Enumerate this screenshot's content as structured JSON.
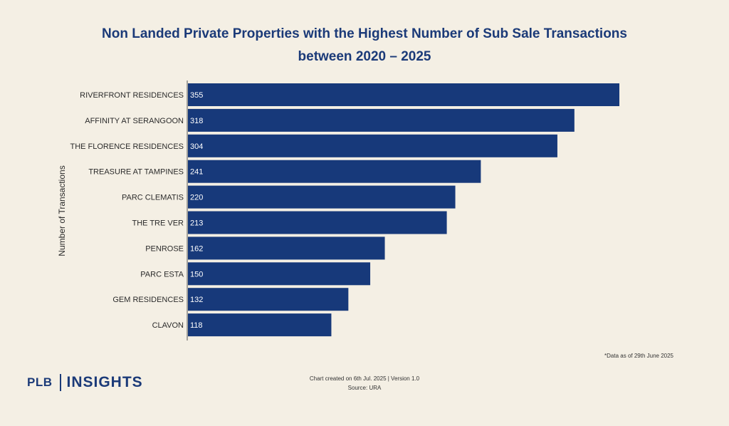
{
  "colors": {
    "background": "#f4efe4",
    "bar": "#17397a",
    "title": "#1b3a78",
    "bar_label": "#ffffff"
  },
  "chart_data": {
    "type": "bar",
    "orientation": "horizontal",
    "title": "Non Landed Private Properties with the Highest Number of Sub Sale Transactions between 2020 – 2025",
    "title_lines": [
      "Non Landed Private Properties with the Highest Number of Sub Sale Transactions",
      "between 2020 – 2025"
    ],
    "ylabel": "Number of Transactions",
    "xlabel": "",
    "categories": [
      "RIVERFRONT RESIDENCES",
      "AFFINITY AT SERANGOON",
      "THE FLORENCE RESIDENCES",
      "TREASURE AT TAMPINES",
      "PARC CLEMATIS",
      "THE TRE VER",
      "PENROSE",
      "PARC ESTA",
      "GEM RESIDENCES",
      "CLAVON"
    ],
    "values": [
      355,
      318,
      304,
      241,
      220,
      213,
      162,
      150,
      132,
      118
    ],
    "xlim": [
      0,
      355
    ],
    "grid": false
  },
  "note": "*Data as of 29th June 2025",
  "footer": {
    "created": "Chart created on 6th Jul. 2025 | Version 1.0",
    "source": "Source: URA"
  },
  "logo": {
    "left": "PLB",
    "right": "INSIGHTS"
  }
}
